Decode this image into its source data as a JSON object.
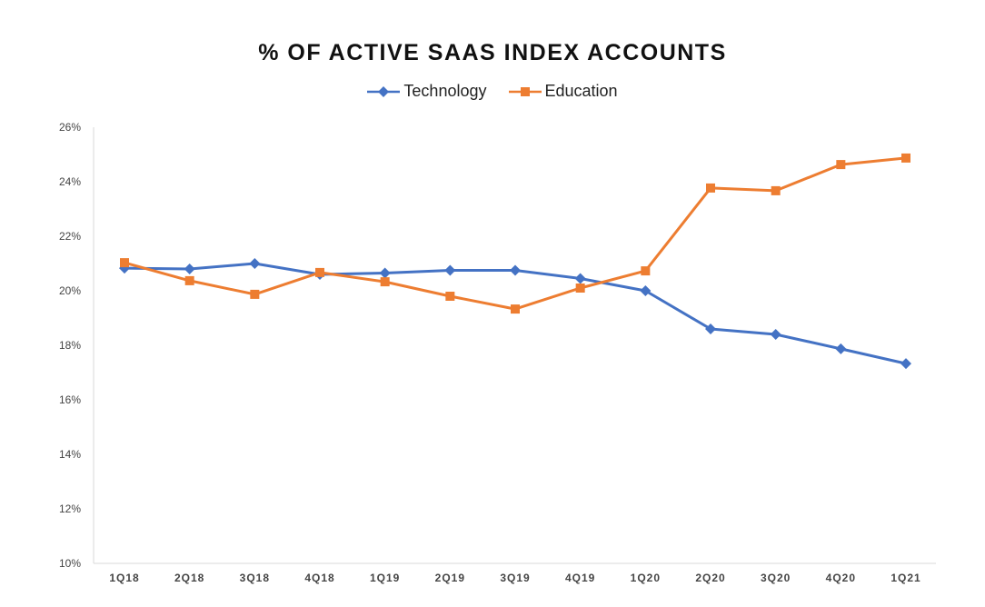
{
  "chart_data": {
    "type": "line",
    "title": "% OF ACTIVE SAAS INDEX ACCOUNTS",
    "categories": [
      "1Q18",
      "2Q18",
      "3Q18",
      "4Q18",
      "1Q19",
      "2Q19",
      "3Q19",
      "4Q19",
      "1Q20",
      "2Q20",
      "3Q20",
      "4Q20",
      "1Q21"
    ],
    "series": [
      {
        "name": "Technology",
        "color": "#4472C4",
        "marker": "diamond",
        "values": [
          20.83,
          20.8,
          21.0,
          20.6,
          20.65,
          20.75,
          20.75,
          20.45,
          20.0,
          18.6,
          18.4,
          17.87,
          17.33
        ]
      },
      {
        "name": "Education",
        "color": "#ED7D31",
        "marker": "square",
        "values": [
          21.03,
          20.37,
          19.87,
          20.67,
          20.33,
          19.8,
          19.33,
          20.1,
          20.73,
          23.77,
          23.67,
          24.63,
          24.87
        ]
      }
    ],
    "ylim": [
      10,
      26
    ],
    "yticks": [
      10,
      12,
      14,
      16,
      18,
      20,
      22,
      24,
      26
    ],
    "ytick_format": "%",
    "grid": false,
    "legend_position": "top-center"
  }
}
